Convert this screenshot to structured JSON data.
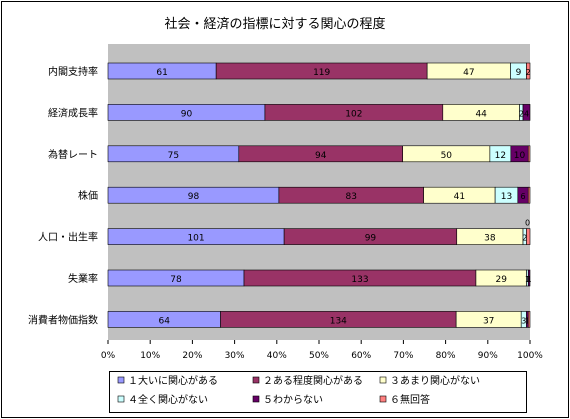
{
  "chart_data": {
    "type": "bar",
    "stacked": "percent",
    "orientation": "horizontal",
    "title": "社会・経済の指標に対する関心の程度",
    "categories": [
      "内閣支持率",
      "経済成長率",
      "為替レート",
      "株価",
      "人口・出生率",
      "失業率",
      "消費者物価指数"
    ],
    "series": [
      {
        "name": "１大いに関心がある",
        "color": "#9999ff",
        "values": [
          61,
          90,
          75,
          98,
          101,
          78,
          64
        ],
        "labels": [
          "61",
          "90",
          "75",
          "98",
          "101",
          "78",
          "64"
        ]
      },
      {
        "name": "２ある程度関心がある",
        "color": "#993366",
        "values": [
          119,
          102,
          94,
          83,
          99,
          133,
          134
        ],
        "labels": [
          "119",
          "102",
          "94",
          "83",
          "99",
          "133",
          "134"
        ]
      },
      {
        "name": "３あまり関心がない",
        "color": "#ffffcc",
        "values": [
          47,
          44,
          50,
          41,
          38,
          29,
          37
        ],
        "labels": [
          "47",
          "44",
          "50",
          "41",
          "38",
          "29",
          "37"
        ]
      },
      {
        "name": "４全く関心がない",
        "color": "#ccffff",
        "values": [
          9,
          2,
          12,
          13,
          2,
          1,
          3
        ],
        "labels": [
          "9",
          "2",
          "12",
          "13",
          "2",
          "1",
          "3"
        ]
      },
      {
        "name": "５わからない",
        "color": "#660066",
        "values": [
          0,
          4,
          10,
          6,
          0,
          1,
          1
        ],
        "labels": [
          "",
          "4",
          "10",
          "6",
          "0",
          "1",
          "1"
        ]
      },
      {
        "name": "６無回答",
        "color": "#ff8080",
        "values": [
          2,
          0,
          1,
          1,
          2,
          0,
          1
        ],
        "labels": [
          "2",
          "",
          "",
          "",
          "",
          "",
          ""
        ]
      }
    ],
    "xaxis": {
      "ticks": [
        "0%",
        "10%",
        "20%",
        "30%",
        "40%",
        "50%",
        "60%",
        "70%",
        "80%",
        "90%",
        "100%"
      ]
    },
    "legend_position": "bottom",
    "grid": false,
    "plot_background": "#c0c0c0"
  }
}
